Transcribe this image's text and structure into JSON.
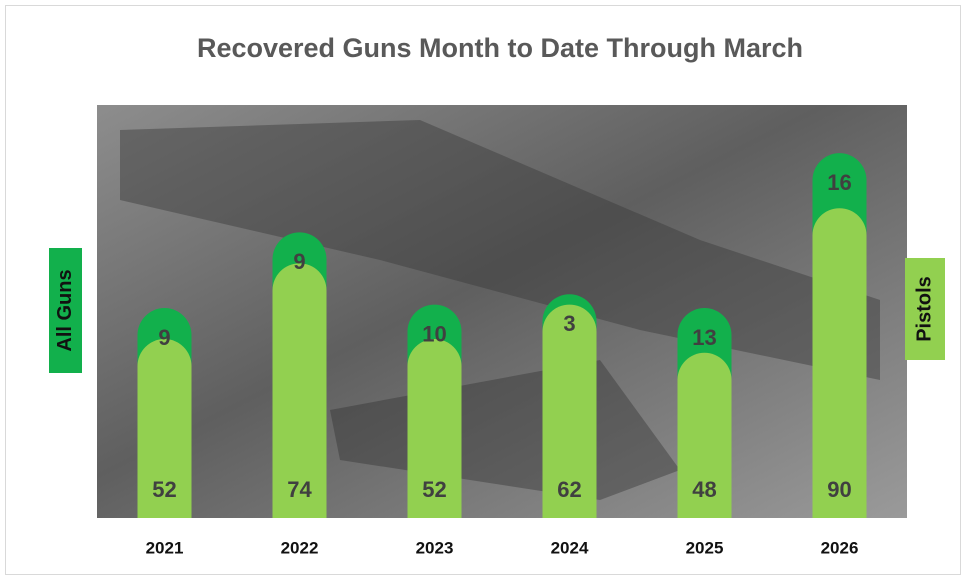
{
  "chart_data": {
    "type": "stacked-bar",
    "title": "Recovered Guns Month to Date Through March",
    "categories": [
      "2021",
      "2022",
      "2023",
      "2024",
      "2025",
      "2026"
    ],
    "series": [
      {
        "name": "Pistols",
        "color": "#92d050",
        "values": [
          52,
          74,
          52,
          62,
          48,
          90
        ]
      },
      {
        "name": "All Guns",
        "color": "#12b04c",
        "values": [
          9,
          9,
          10,
          3,
          13,
          16
        ]
      }
    ],
    "ylim": [
      0,
      120
    ]
  }
}
